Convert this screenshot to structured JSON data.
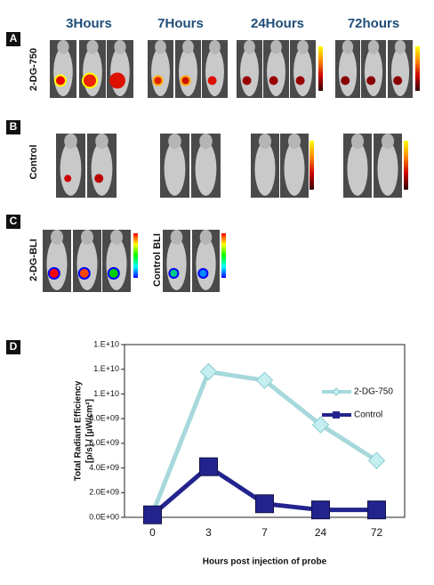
{
  "panels": {
    "a": "A",
    "b": "B",
    "c": "C",
    "d": "D"
  },
  "time_headers": [
    "3Hours",
    "7Hours",
    "24Hours",
    "72hours"
  ],
  "row_labels": {
    "a": "2-DG-750",
    "b": "Control",
    "c": "2-DG-BLI",
    "c2": "Control BLI"
  },
  "chart_data": {
    "type": "line",
    "categories": [
      "0",
      "3",
      "7",
      "24",
      "72"
    ],
    "x_label": "Hours post injection of probe",
    "y_label": [
      "Total Radiant Efficiency",
      "[p/s] / [µW/cm²]"
    ],
    "ylim": [
      0,
      14000000000
    ],
    "yticks": [
      {
        "value": 0,
        "label": "0.0E+00"
      },
      {
        "value": 2000000000,
        "label": "2.0E+09"
      },
      {
        "value": 4000000000,
        "label": "4.0E+09"
      },
      {
        "value": 6000000000,
        "label": "6.0E+09"
      },
      {
        "value": 8000000000,
        "label": "8.0E+09"
      },
      {
        "value": 10000000000,
        "label": "1.E+10"
      },
      {
        "value": 12000000000,
        "label": "1.E+10"
      },
      {
        "value": 14000000000,
        "label": "1.E+10"
      }
    ],
    "legend": "top-right",
    "series": [
      {
        "name": "2-DG-750",
        "color": "#a6d8dc",
        "marker": "diamond",
        "values": [
          300000000,
          11800000000,
          11100000000,
          7500000000,
          4600000000
        ]
      },
      {
        "name": "Control",
        "color": "#23238e",
        "marker": "square",
        "values": [
          200000000,
          4100000000,
          1100000000,
          600000000,
          600000000
        ]
      }
    ]
  }
}
